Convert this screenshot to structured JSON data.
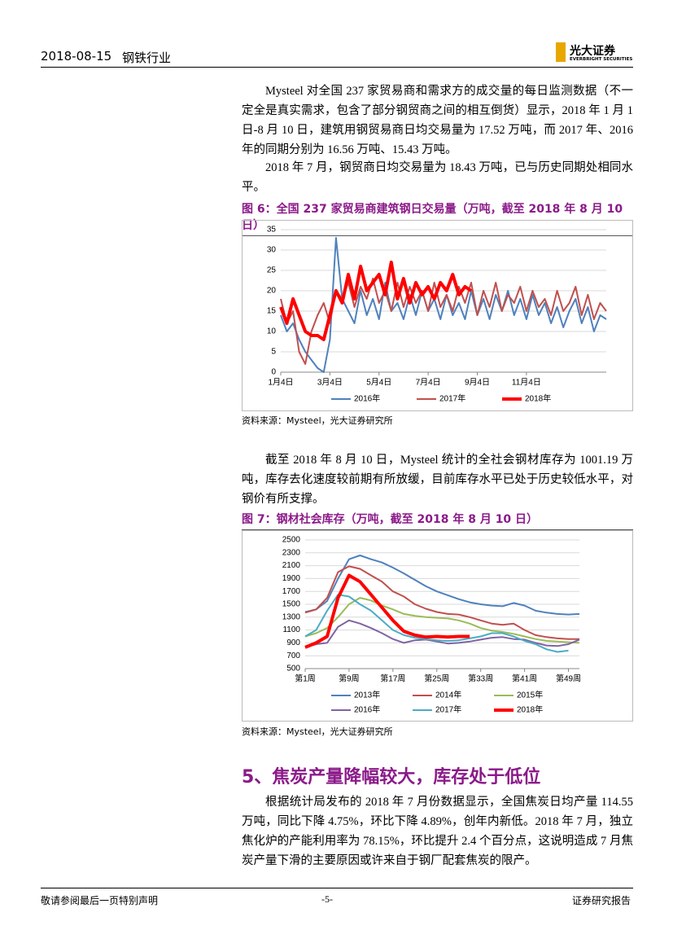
{
  "header": {
    "date": "2018-08-15",
    "industry": "钢铁行业",
    "logo": "光大证券",
    "logo_en": "EVERBRIGHT SECURITIES"
  },
  "body": [
    "Mysteel 对全国 237 家贸易商和需求方的成交量的每日监测数据（不一定全是真实需求，包含了部分钢贸商之间的相互倒货）显示，2018 年 1 月 1 日-8 月 10 日，建筑用钢贸易商日均交易量为 17.52 万吨，而 2017 年、2016 年的同期分别为 16.56 万吨、15.43 万吨。",
    "2018 年 7 月，钢贸商日均交易量为 18.43 万吨，已与历史同期处相同水平。",
    "截至 2018 年 8 月 10 日，Mysteel 统计的全社会钢材库存为 1001.19 万吨，库存去化速度较前期有所放缓，目前库存水平已处于历史较低水平，对钢价有所支撑。"
  ],
  "figures": [
    {
      "title": "图 6：全国 237 家贸易商建筑钢日交易量（万吨，截至 2018 年 8 月 10 日）",
      "source": "资料来源：Mysteel，光大证券研究所",
      "chart": {
        "type": "line",
        "categories": [
          "1月4日",
          null,
          null,
          null,
          null,
          null,
          null,
          null,
          "3月4日",
          null,
          null,
          null,
          null,
          null,
          null,
          null,
          "5月4日",
          null,
          null,
          null,
          null,
          null,
          null,
          null,
          "7月4日",
          null,
          null,
          null,
          null,
          null,
          null,
          null,
          "9月4日",
          null,
          null,
          null,
          null,
          null,
          null,
          null,
          "11月4日",
          null,
          null,
          null,
          null,
          null,
          null,
          null,
          null,
          null,
          null,
          null,
          null,
          null
        ],
        "ylim": [
          0,
          35
        ],
        "yticks": [
          0,
          5,
          10,
          15,
          20,
          25,
          30,
          35
        ],
        "grid": true,
        "legend": "bottom",
        "series": [
          {
            "name": "2016年",
            "color": "#4f81bd",
            "width": 2,
            "values": [
              14,
              10,
              12,
              8,
              5,
              3,
              1,
              0,
              8,
              33,
              18,
              15,
              12,
              20,
              14,
              18,
              13,
              22,
              15,
              17,
              13,
              19,
              14,
              20,
              15,
              18,
              13,
              19,
              14,
              17,
              13,
              20,
              14,
              18,
              13,
              19,
              15,
              20,
              14,
              18,
              13,
              19,
              14,
              17,
              12,
              16,
              11,
              15,
              18,
              12,
              16,
              10,
              14,
              13
            ]
          },
          {
            "name": "2017年",
            "color": "#c0504d",
            "width": 2,
            "values": [
              18,
              12,
              15,
              5,
              2,
              10,
              14,
              17,
              12,
              20,
              18,
              22,
              16,
              21,
              18,
              23,
              17,
              20,
              15,
              22,
              16,
              21,
              17,
              20,
              15,
              22,
              16,
              19,
              15,
              21,
              17,
              22,
              14,
              20,
              16,
              22,
              15,
              19,
              17,
              21,
              15,
              20,
              16,
              18,
              14,
              20,
              15,
              17,
              21,
              14,
              19,
              13,
              17,
              15
            ]
          },
          {
            "name": "2018年",
            "color": "#ff0000",
            "width": 4,
            "values": [
              16,
              12,
              18,
              14,
              10,
              9,
              9,
              8,
              14,
              20,
              17,
              24,
              18,
              26,
              20,
              22,
              24,
              19,
              27,
              18,
              23,
              17,
              22,
              19,
              21,
              18,
              22,
              20,
              24,
              19,
              21,
              20,
              null,
              null,
              null,
              null,
              null,
              null,
              null,
              null,
              null,
              null,
              null,
              null,
              null,
              null,
              null,
              null,
              null,
              null,
              null,
              null,
              null,
              null
            ]
          }
        ]
      }
    },
    {
      "title": "图 7：钢材社会库存（万吨，截至 2018 年 8 月 10 日）",
      "source": "资料来源：Mysteel，光大证券研究所",
      "chart": {
        "type": "line",
        "categories": [
          "第1周",
          null,
          null,
          null,
          "第9周",
          null,
          null,
          null,
          "第17周",
          null,
          null,
          null,
          "第25周",
          null,
          null,
          null,
          "第33周",
          null,
          null,
          null,
          "第41周",
          null,
          null,
          null,
          "第49周",
          null
        ],
        "ylim": [
          500,
          2500
        ],
        "yticks": [
          500,
          700,
          900,
          1100,
          1300,
          1500,
          1700,
          1900,
          2100,
          2300,
          2500
        ],
        "grid": true,
        "legend": "bottom",
        "series": [
          {
            "name": "2013年",
            "color": "#4f81bd",
            "width": 2,
            "values": [
              1380,
              1420,
              1550,
              1900,
              2200,
              2260,
              2200,
              2150,
              2070,
              1980,
              1880,
              1780,
              1700,
              1640,
              1580,
              1530,
              1500,
              1480,
              1470,
              1520,
              1480,
              1400,
              1370,
              1350,
              1340,
              1350
            ]
          },
          {
            "name": "2014年",
            "color": "#c0504d",
            "width": 2,
            "values": [
              1370,
              1420,
              1600,
              2000,
              2090,
              2050,
              1950,
              1850,
              1700,
              1620,
              1500,
              1430,
              1380,
              1350,
              1340,
              1300,
              1250,
              1200,
              1180,
              1200,
              1100,
              1020,
              990,
              970,
              960,
              960
            ]
          },
          {
            "name": "2015年",
            "color": "#9bbb59",
            "width": 2,
            "values": [
              1000,
              1050,
              1130,
              1300,
              1500,
              1600,
              1560,
              1480,
              1420,
              1350,
              1320,
              1300,
              1290,
              1280,
              1250,
              1200,
              1130,
              1090,
              1070,
              1040,
              1000,
              960,
              930,
              920,
              910,
              900
            ]
          },
          {
            "name": "2016年",
            "color": "#8064a2",
            "width": 2,
            "values": [
              830,
              880,
              900,
              1150,
              1250,
              1200,
              1130,
              1050,
              960,
              900,
              940,
              950,
              920,
              890,
              900,
              920,
              950,
              980,
              990,
              960,
              950,
              900,
              860,
              850,
              880,
              950
            ]
          },
          {
            "name": "2017年",
            "color": "#4bacc6",
            "width": 2,
            "values": [
              1000,
              1100,
              1400,
              1650,
              1620,
              1500,
              1400,
              1250,
              1100,
              1020,
              980,
              960,
              940,
              930,
              940,
              970,
              1000,
              1050,
              1050,
              1000,
              930,
              880,
              800,
              760,
              780,
              null
            ]
          },
          {
            "name": "2018年",
            "color": "#ff0000",
            "width": 4,
            "values": [
              830,
              900,
              1000,
              1600,
              1950,
              1850,
              1650,
              1450,
              1250,
              1080,
              1020,
              990,
              1000,
              990,
              1000,
              1000,
              null,
              null,
              null,
              null,
              null,
              null,
              null,
              null,
              null,
              null
            ]
          }
        ]
      }
    }
  ],
  "section": {
    "heading": "5、焦炭产量降幅较大，库存处于低位",
    "body": "根据统计局发布的 2018 年 7 月份数据显示，全国焦炭日均产量 114.55 万吨，同比下降 4.75%，环比下降 4.89%，创年内新低。2018 年 7 月，独立焦化炉的产能利用率为 78.15%，环比提升 2.4 个百分点，这说明造成 7 月焦炭产量下滑的主要原因或许来自于钢厂配套焦炭的限产。"
  },
  "footer": {
    "left": "敬请参阅最后一页特别声明",
    "page": "-5-",
    "right": "证券研究报告"
  }
}
